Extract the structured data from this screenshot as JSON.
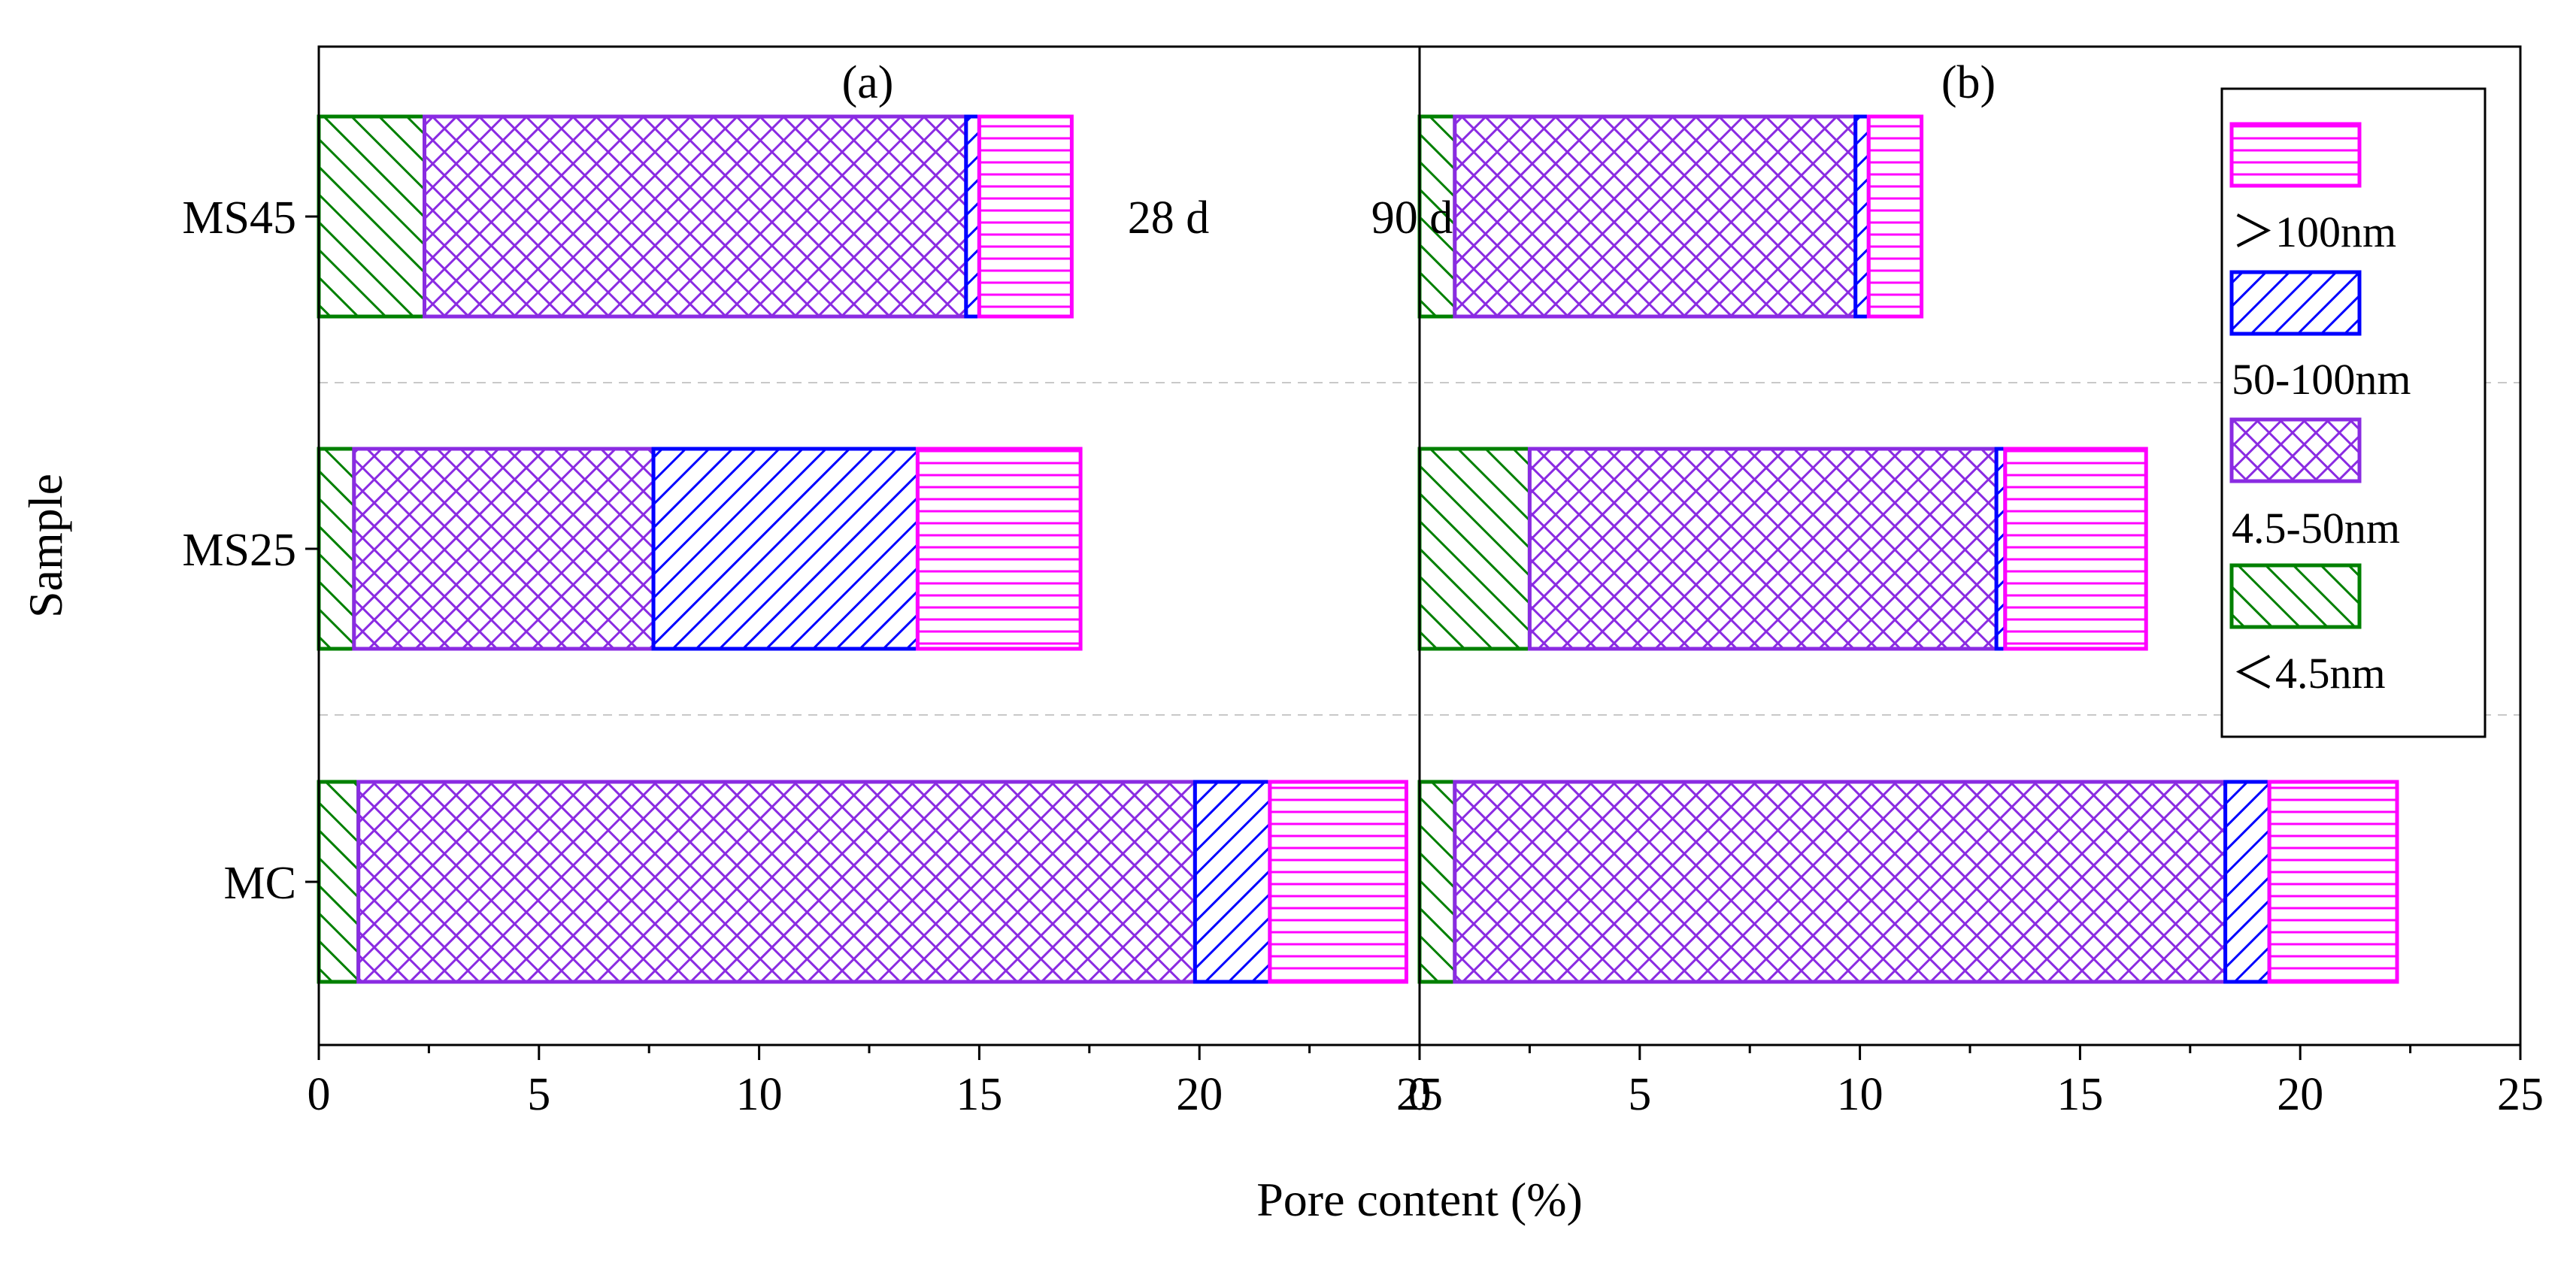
{
  "chart_data": {
    "type": "bar",
    "orientation": "horizontal",
    "stacked": true,
    "xlabel": "Pore content (%)",
    "ylabel": "Sample",
    "xlim": [
      0,
      25
    ],
    "x_ticks": [
      0,
      5,
      10,
      15,
      20,
      25
    ],
    "x_tick_labels": [
      "0",
      "5",
      "10",
      "15",
      "20",
      "25"
    ],
    "categories": [
      "MS45",
      "MS25",
      "MC"
    ],
    "legend_position": "top-right",
    "legend": [
      {
        "key": "gt100",
        "label": ">100nm",
        "display": "＞100nm",
        "color": "#ff00ff",
        "pattern": "horizontal-lines"
      },
      {
        "key": "r50_100",
        "label": "50-100nm",
        "display": "50-100nm",
        "color": "#0000ff",
        "pattern": "diagonal-lines"
      },
      {
        "key": "r4_5_50",
        "label": "4.5-50nm",
        "display": "4.5-50nm",
        "color": "#8a2be2",
        "pattern": "crosshatch"
      },
      {
        "key": "lt4_5",
        "label": "<4.5nm",
        "display": "＜4.5nm",
        "color": "#008000",
        "pattern": "forward-diagonal"
      }
    ],
    "series_order": [
      "<4.5nm",
      "4.5-50nm",
      "50-100nm",
      ">100nm"
    ],
    "panels": [
      {
        "id": "a",
        "label": "(a)",
        "period": "28 d",
        "data": {
          "MS45": [
            2.4,
            12.3,
            0.3,
            2.1
          ],
          "MS25": [
            0.8,
            6.8,
            6.0,
            3.7
          ],
          "MC": [
            0.9,
            19.0,
            1.7,
            3.1
          ]
        }
      },
      {
        "id": "b",
        "label": "(b)",
        "period": "90 d",
        "data": {
          "MS45": [
            0.8,
            9.1,
            0.3,
            1.2
          ],
          "MS25": [
            2.5,
            10.6,
            0.2,
            3.2
          ],
          "MC": [
            0.8,
            17.5,
            1.0,
            2.9
          ]
        }
      }
    ]
  }
}
